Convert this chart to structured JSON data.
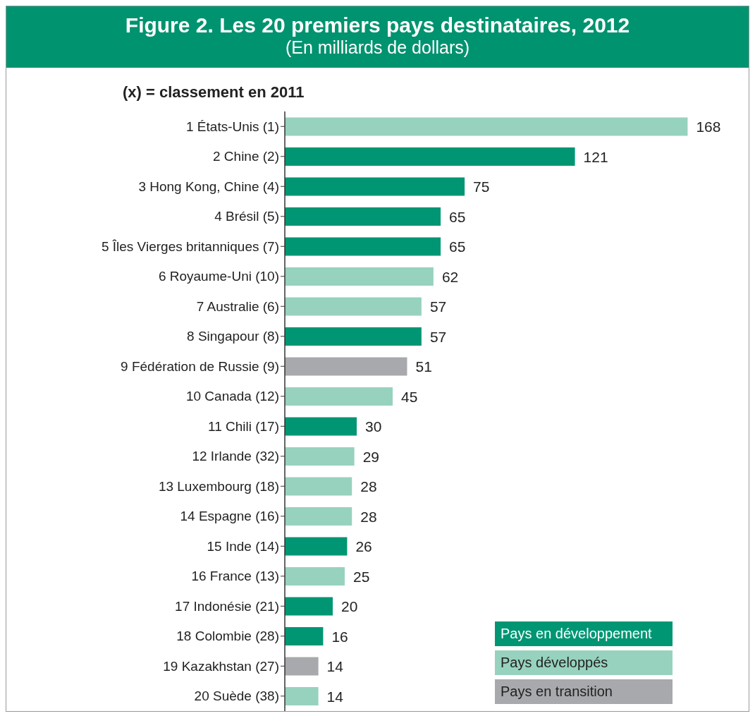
{
  "chart_data": {
    "type": "bar",
    "title": "Figure 2. Les 20 premiers pays destinataires, 2012",
    "subtitle": "(En milliards de dollars)",
    "annotations": [
      "(x) = classement en 2011"
    ],
    "orientation": "horizontal",
    "stacked": true,
    "data_labels": true,
    "legend": "bottom right",
    "categories": [
      "1 États-Unis (1)",
      "2 Chine (2)",
      "3 Hong Kong, Chine (4)",
      "4 Brésil (5)",
      "5 Îles Vierges britanniques (7)",
      "6 Royaume-Uni (10)",
      "7 Australie (6)",
      "8 Singapour (8)",
      "9 Fédération de Russie (9)",
      "10 Canada (12)",
      "11 Chili (17)",
      "12 Irlande (32)",
      "13 Luxembourg (18)",
      "14 Espagne (16)",
      "15 Inde (14)",
      "16 France (13)",
      "17 Indonésie (21)",
      "18 Colombie (28)",
      "19 Kazakhstan (27)",
      "20 Suède (38)"
    ],
    "series": [
      {
        "name": "Pays en développement",
        "color": "#009673",
        "values": [
          null,
          121,
          75,
          65,
          65,
          null,
          null,
          57,
          null,
          null,
          30,
          null,
          null,
          null,
          26,
          null,
          20,
          16,
          null,
          null
        ]
      },
      {
        "name": "Pays développés",
        "color": "#97d2bf",
        "values": [
          168,
          null,
          null,
          null,
          null,
          62,
          57,
          null,
          null,
          45,
          null,
          29,
          28,
          28,
          null,
          25,
          null,
          null,
          null,
          14
        ]
      },
      {
        "name": "Pays en transition",
        "color": "#a7a9ac",
        "values": [
          null,
          null,
          null,
          null,
          null,
          null,
          null,
          null,
          51,
          null,
          null,
          null,
          null,
          null,
          null,
          null,
          null,
          null,
          14,
          null
        ]
      }
    ]
  }
}
